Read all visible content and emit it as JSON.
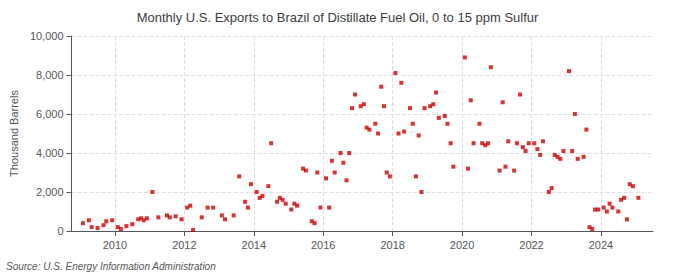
{
  "chart_data": {
    "type": "scatter",
    "title": "Monthly U.S. Exports to Brazil of Distillate Fuel Oil, 0 to 15 ppm Sulfur",
    "ylabel": "Thousand Barrels",
    "annotations": [
      "Source: U.S. Energy Information Administration"
    ],
    "color": "#cc0000",
    "marker": "square",
    "grid": true,
    "xlim": [
      2008.75,
      2025.5
    ],
    "xticks": [
      2010,
      2012,
      2014,
      2016,
      2018,
      2020,
      2022,
      2024
    ],
    "ylim": [
      0,
      10000
    ],
    "yticks": [
      0,
      {
        "value": 2000,
        "label": "2,000"
      },
      {
        "value": 4000,
        "label": "4,000"
      },
      {
        "value": 6000,
        "label": "6,000"
      },
      {
        "value": 8000,
        "label": "8,000"
      },
      {
        "value": 10000,
        "label": "10,000"
      }
    ],
    "x": [
      2009.08,
      2009.25,
      2009.33,
      2009.5,
      2009.67,
      2009.75,
      2009.92,
      2010.08,
      2010.17,
      2010.33,
      2010.5,
      2010.67,
      2010.75,
      2010.83,
      2010.92,
      2011.08,
      2011.25,
      2011.5,
      2011.58,
      2011.75,
      2011.92,
      2012.08,
      2012.17,
      2012.25,
      2012.5,
      2012.67,
      2012.83,
      2013.08,
      2013.17,
      2013.42,
      2013.58,
      2013.75,
      2013.83,
      2013.92,
      2014.08,
      2014.17,
      2014.25,
      2014.42,
      2014.5,
      2014.67,
      2014.75,
      2014.83,
      2014.92,
      2015.08,
      2015.17,
      2015.25,
      2015.42,
      2015.5,
      2015.67,
      2015.75,
      2015.83,
      2015.92,
      2016.08,
      2016.17,
      2016.25,
      2016.33,
      2016.5,
      2016.58,
      2016.67,
      2016.75,
      2016.83,
      2016.92,
      2017.08,
      2017.17,
      2017.25,
      2017.33,
      2017.5,
      2017.58,
      2017.67,
      2017.75,
      2017.83,
      2017.92,
      2018.08,
      2018.17,
      2018.25,
      2018.33,
      2018.5,
      2018.58,
      2018.67,
      2018.75,
      2018.83,
      2018.92,
      2019.08,
      2019.17,
      2019.25,
      2019.33,
      2019.5,
      2019.58,
      2019.67,
      2019.75,
      2020.08,
      2020.17,
      2020.25,
      2020.33,
      2020.5,
      2020.58,
      2020.67,
      2020.75,
      2020.83,
      2021.08,
      2021.17,
      2021.25,
      2021.33,
      2021.5,
      2021.58,
      2021.67,
      2021.75,
      2021.83,
      2021.92,
      2022.08,
      2022.17,
      2022.25,
      2022.33,
      2022.5,
      2022.58,
      2022.67,
      2022.75,
      2022.83,
      2022.92,
      2023.08,
      2023.17,
      2023.25,
      2023.33,
      2023.5,
      2023.58,
      2023.67,
      2023.75,
      2023.83,
      2023.92,
      2024.08,
      2024.17,
      2024.25,
      2024.33,
      2024.5,
      2024.58,
      2024.67,
      2024.75,
      2024.83,
      2024.92,
      2025.08
    ],
    "values": [
      400,
      550,
      200,
      150,
      300,
      500,
      550,
      200,
      100,
      250,
      350,
      600,
      650,
      550,
      650,
      2000,
      700,
      800,
      700,
      750,
      600,
      1200,
      1300,
      50,
      700,
      1200,
      1200,
      800,
      600,
      800,
      2800,
      1500,
      1200,
      2400,
      2000,
      1700,
      1800,
      2300,
      4500,
      1500,
      1700,
      1600,
      1400,
      1100,
      1400,
      1300,
      3200,
      3100,
      500,
      400,
      3000,
      1200,
      2700,
      1200,
      3600,
      3000,
      4000,
      3500,
      2600,
      4000,
      6300,
      7000,
      6400,
      6500,
      5300,
      5200,
      5500,
      5000,
      7400,
      6400,
      3000,
      2800,
      8100,
      5000,
      7600,
      5100,
      6300,
      5500,
      2800,
      4900,
      2000,
      6300,
      6400,
      6500,
      7100,
      5800,
      5900,
      5500,
      4500,
      3300,
      8900,
      3200,
      6700,
      4500,
      5500,
      4500,
      4400,
      4500,
      8400,
      3100,
      6600,
      3300,
      4600,
      3100,
      4500,
      7000,
      4300,
      4100,
      4500,
      4500,
      4200,
      3900,
      4600,
      2000,
      2200,
      3900,
      3800,
      3700,
      4100,
      8200,
      4100,
      6000,
      3700,
      3800,
      5200,
      200,
      100,
      1100,
      1100,
      1200,
      1000,
      1400,
      1200,
      1000,
      1600,
      1700,
      600,
      2400,
      2300,
      1700
    ]
  }
}
